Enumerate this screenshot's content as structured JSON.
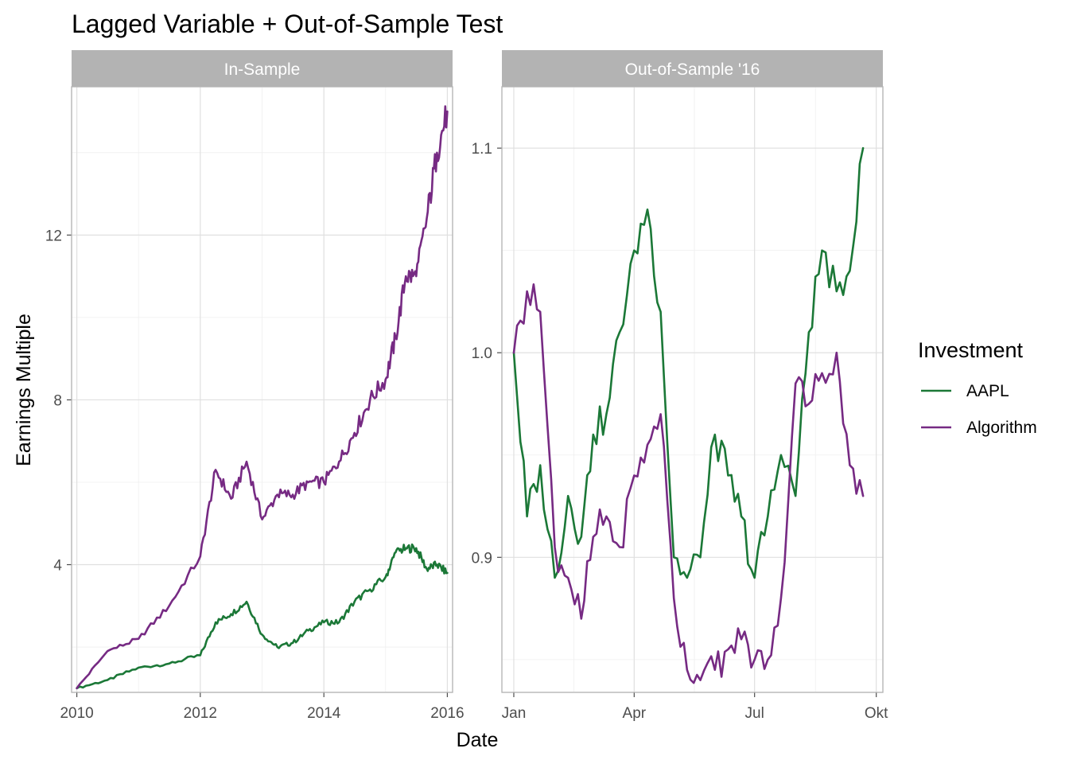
{
  "title": "Lagged Variable + Out-of-Sample Test",
  "chart_data": [
    {
      "type": "line",
      "panel_label": "In-Sample",
      "xlabel": "Date",
      "ylabel": "Earnings Multiple",
      "xlim": [
        "2009-12-01",
        "2016-02-01"
      ],
      "ylim": [
        0.9,
        15.6
      ],
      "x_tick_labels": [
        "2010",
        "2012",
        "2014",
        "2016"
      ],
      "x_tick_values": [
        "2010-01-01",
        "2012-01-01",
        "2014-01-01",
        "2016-01-01"
      ],
      "y_tick_labels": [
        "4",
        "8",
        "12"
      ],
      "y_tick_values": [
        4,
        8,
        12
      ],
      "grid": true,
      "x": [
        "2010-01-01",
        "2010-07-01",
        "2011-01-01",
        "2011-07-01",
        "2012-01-01",
        "2012-04-01",
        "2012-07-01",
        "2012-10-01",
        "2013-01-01",
        "2013-04-01",
        "2013-07-01",
        "2013-10-01",
        "2014-01-01",
        "2014-04-01",
        "2014-07-01",
        "2014-10-01",
        "2015-01-01",
        "2015-03-01",
        "2015-05-01",
        "2015-07-01",
        "2015-09-01",
        "2015-11-01",
        "2016-01-01"
      ],
      "series": [
        {
          "name": "AAPL",
          "color": "#1b7837",
          "values": [
            1.0,
            1.2,
            1.5,
            1.6,
            1.8,
            2.6,
            2.8,
            3.1,
            2.3,
            2.0,
            2.1,
            2.4,
            2.6,
            2.6,
            3.1,
            3.4,
            3.7,
            4.3,
            4.4,
            4.4,
            3.9,
            4.0,
            3.8
          ]
        },
        {
          "name": "Algorithm",
          "color": "#762a83",
          "values": [
            1.0,
            1.9,
            2.2,
            3.0,
            4.2,
            6.3,
            5.6,
            6.5,
            5.1,
            5.7,
            5.7,
            6.0,
            6.0,
            6.5,
            7.2,
            8.0,
            8.5,
            9.5,
            11.0,
            11.0,
            12.4,
            14.0,
            15.0
          ]
        }
      ]
    },
    {
      "type": "line",
      "panel_label": "Out-of-Sample '16",
      "xlabel": "Date",
      "ylabel": "Earnings Multiple",
      "xlim": [
        "2015-12-23",
        "2016-10-06"
      ],
      "ylim": [
        0.834,
        1.13
      ],
      "x_tick_labels": [
        "Jan",
        "Apr",
        "Jul",
        "Okt"
      ],
      "x_tick_values": [
        "2016-01-01",
        "2016-04-01",
        "2016-07-01",
        "2016-10-01"
      ],
      "y_tick_labels": [
        "0.9",
        "1.0",
        "1.1"
      ],
      "y_tick_values": [
        0.9,
        1.0,
        1.1
      ],
      "grid": true,
      "x": [
        "2016-01-01",
        "2016-01-11",
        "2016-01-21",
        "2016-02-01",
        "2016-02-11",
        "2016-02-21",
        "2016-03-01",
        "2016-03-11",
        "2016-03-21",
        "2016-04-01",
        "2016-04-11",
        "2016-04-21",
        "2016-05-01",
        "2016-05-11",
        "2016-05-21",
        "2016-06-01",
        "2016-06-11",
        "2016-06-21",
        "2016-07-01",
        "2016-07-11",
        "2016-07-21",
        "2016-08-01",
        "2016-08-11",
        "2016-08-21",
        "2016-09-01",
        "2016-09-11",
        "2016-09-21"
      ],
      "series": [
        {
          "name": "AAPL",
          "color": "#1b7837",
          "values": [
            1.0,
            0.92,
            0.945,
            0.89,
            0.93,
            0.91,
            0.96,
            0.97,
            1.01,
            1.05,
            1.07,
            1.02,
            0.9,
            0.89,
            0.9,
            0.96,
            0.94,
            0.92,
            0.89,
            0.92,
            0.95,
            0.93,
            1.01,
            1.05,
            1.03,
            1.04,
            1.1
          ]
        },
        {
          "name": "Algorithm",
          "color": "#762a83",
          "values": [
            1.0,
            1.03,
            1.02,
            0.905,
            0.89,
            0.87,
            0.91,
            0.92,
            0.905,
            0.94,
            0.955,
            0.97,
            0.88,
            0.845,
            0.84,
            0.845,
            0.855,
            0.86,
            0.85,
            0.85,
            0.88,
            0.985,
            0.975,
            0.99,
            1.0,
            0.945,
            0.93
          ]
        }
      ]
    }
  ],
  "legend": {
    "title": "Investment",
    "placement": "right",
    "entries": [
      {
        "label": "AAPL",
        "color": "#1b7837"
      },
      {
        "label": "Algorithm",
        "color": "#762a83"
      }
    ]
  }
}
